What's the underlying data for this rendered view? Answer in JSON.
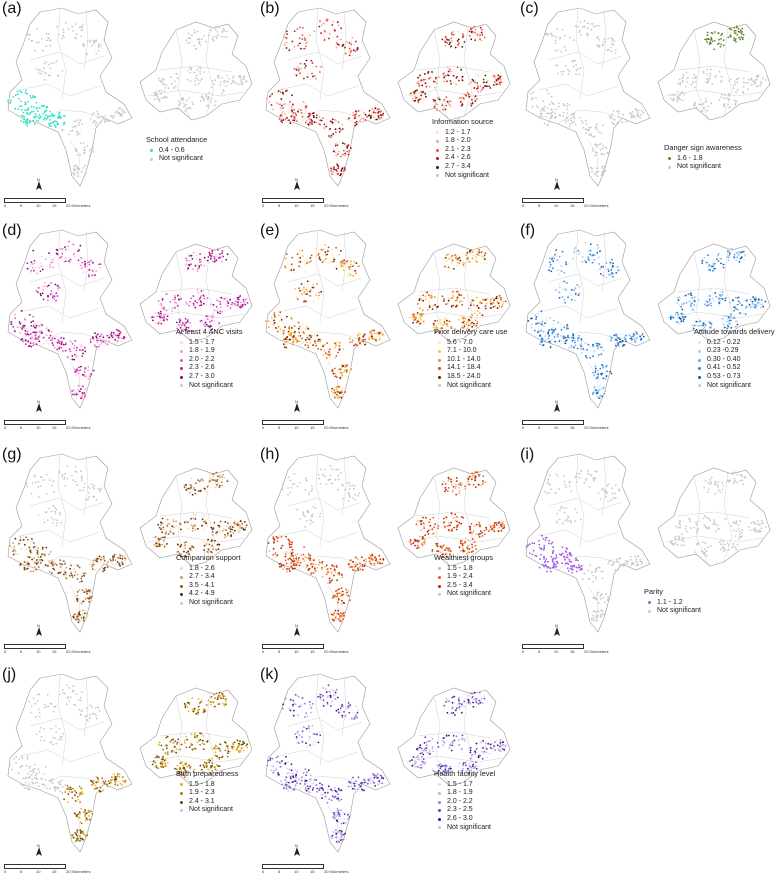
{
  "figure": {
    "scale": {
      "ticks": [
        "0",
        "5",
        "10",
        "15"
      ],
      "unit": "20 Kilometers"
    },
    "north_label": "N",
    "colors": {
      "not_significant": "#c8c8c8",
      "boundary": "#9a9a9a"
    },
    "panels": [
      {
        "label": "(a)",
        "title": "School attendance",
        "items": [
          {
            "label": "0.4 - 0.6",
            "color": "#2ee0c4"
          },
          {
            "label": "Not significant",
            "color": "#c8c8c8"
          }
        ],
        "highlight": "sw"
      },
      {
        "label": "(b)",
        "title": "Information source",
        "items": [
          {
            "label": "1.2 - 1.7",
            "color": "#fde0d2"
          },
          {
            "label": "1.8 - 2.0",
            "color": "#f6a489"
          },
          {
            "label": "2.1 - 2.3",
            "color": "#e2574a"
          },
          {
            "label": "2.4 - 2.6",
            "color": "#b8161b"
          },
          {
            "label": "2.7 - 3.4",
            "color": "#5c0a12"
          },
          {
            "label": "Not significant",
            "color": "#c8c8c8"
          }
        ],
        "highlight": "all"
      },
      {
        "label": "(c)",
        "title": "Danger sign awareness",
        "items": [
          {
            "label": "1.6 - 1.8",
            "color": "#5e8a2e"
          },
          {
            "label": "Not significant",
            "color": "#c8c8c8"
          }
        ],
        "highlight": "ne"
      },
      {
        "label": "(d)",
        "title": "At least 4 ANC visits",
        "items": [
          {
            "label": "1.5 - 1.7",
            "color": "#fbd2f0"
          },
          {
            "label": "1.8 - 1.9",
            "color": "#f29ad8"
          },
          {
            "label": "2.0 - 2.2",
            "color": "#e357c6"
          },
          {
            "label": "2.3 - 2.6",
            "color": "#c21aa3"
          },
          {
            "label": "2.7 - 3.0",
            "color": "#7a0f6b"
          },
          {
            "label": "Not significant",
            "color": "#c8c8c8"
          }
        ],
        "highlight": "all"
      },
      {
        "label": "(e)",
        "title": "Prior delivery care use",
        "items": [
          {
            "label": "5.6 - 7.0",
            "color": "#fde7a8"
          },
          {
            "label": "7.1 - 10.0",
            "color": "#fbbf4a"
          },
          {
            "label": "10.1 - 14.0",
            "color": "#f0901f"
          },
          {
            "label": "14.1 - 18.4",
            "color": "#cc4f12"
          },
          {
            "label": "18.5 - 24.0",
            "color": "#7a1e0a"
          },
          {
            "label": "Not significant",
            "color": "#c8c8c8"
          }
        ],
        "highlight": "all"
      },
      {
        "label": "(f)",
        "title": "Attitude towards delivery care",
        "items": [
          {
            "label": "0.12 - 0.22",
            "color": "#d6e8fb"
          },
          {
            "label": "0.23 -0.29",
            "color": "#a7ccf5"
          },
          {
            "label": "0.30 - 0.40",
            "color": "#6eacec"
          },
          {
            "label": "0.41 - 0.52",
            "color": "#3486d6"
          },
          {
            "label": "0.53 - 0.73",
            "color": "#0f5aa6"
          },
          {
            "label": "Not significant",
            "color": "#c8c8c8"
          }
        ],
        "highlight": "mostly"
      },
      {
        "label": "(g)",
        "title": "Companion support",
        "items": [
          {
            "label": "1.8 - 2.6",
            "color": "#f3d7b0"
          },
          {
            "label": "2.7 - 3.4",
            "color": "#d09a5a"
          },
          {
            "label": "3.5 - 4.1",
            "color": "#9a5c25"
          },
          {
            "label": "4.2 - 4.9",
            "color": "#5a2e0c"
          },
          {
            "label": "Not significant",
            "color": "#c8c8c8"
          }
        ],
        "highlight": "east_sw"
      },
      {
        "label": "(h)",
        "title": "Wealthiest groups",
        "items": [
          {
            "label": "1.5 - 1.8",
            "color": "#f6b07a"
          },
          {
            "label": "1.9 - 2.4",
            "color": "#e65c1d"
          },
          {
            "label": "2.5 - 3.4",
            "color": "#b32b05"
          },
          {
            "label": "Not significant",
            "color": "#c8c8c8"
          }
        ],
        "highlight": "east_sw"
      },
      {
        "label": "(i)",
        "title": "Parity",
        "items": [
          {
            "label": "1.1 - 1.2",
            "color": "#a45ee0"
          },
          {
            "label": "Not significant",
            "color": "#c8c8c8"
          }
        ],
        "highlight": "sw"
      },
      {
        "label": "(j)",
        "title": "Birth preparedness",
        "items": [
          {
            "label": "1.5 - 1.8",
            "color": "#e6b420"
          },
          {
            "label": "1.9 - 2.3",
            "color": "#b07c10"
          },
          {
            "label": "2.4 - 3.1",
            "color": "#6e4a0a"
          },
          {
            "label": "Not significant",
            "color": "#c8c8c8"
          }
        ],
        "highlight": "east_south"
      },
      {
        "label": "(k)",
        "title": "Health facility level",
        "items": [
          {
            "label": "1.5 - 1.7",
            "color": "#e2d6f5"
          },
          {
            "label": "1.8 - 1.9",
            "color": "#c5b0ec"
          },
          {
            "label": "2.0 - 2.2",
            "color": "#9c7ddc"
          },
          {
            "label": "2.3 - 2.5",
            "color": "#6c3fc0"
          },
          {
            "label": "2.6 - 3.0",
            "color": "#3d1680"
          },
          {
            "label": "Not significant",
            "color": "#c8c8c8"
          }
        ],
        "highlight": "all"
      }
    ]
  }
}
